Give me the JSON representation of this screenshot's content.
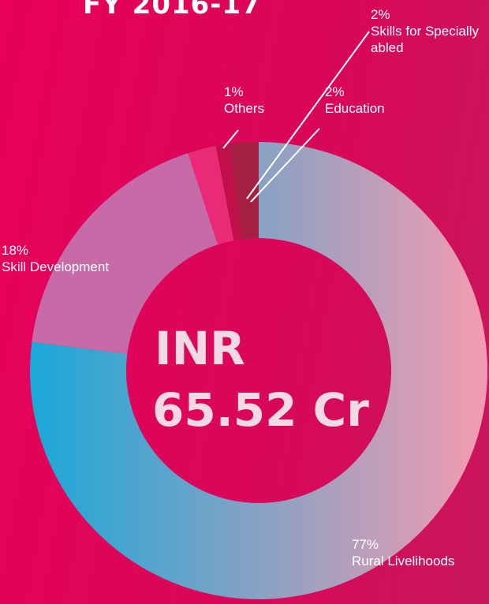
{
  "chart_data": {
    "type": "donut",
    "title": "FY 2016-17",
    "center_text": [
      "INR",
      "65.52 Cr"
    ],
    "categories": [
      "Rural Livelihoods",
      "Skill Development",
      "Skills for Specially abled",
      "Others",
      "Education"
    ],
    "values": [
      77,
      18,
      2,
      1,
      2
    ],
    "value_labels": [
      "77%",
      "18%",
      "2%",
      "1%",
      "2%"
    ],
    "colors": [
      [
        "#1aa8d8",
        "#f59bb0"
      ],
      "#c76aa8",
      "#ea2a77",
      "#c0104a",
      "#a51f42"
    ]
  }
}
